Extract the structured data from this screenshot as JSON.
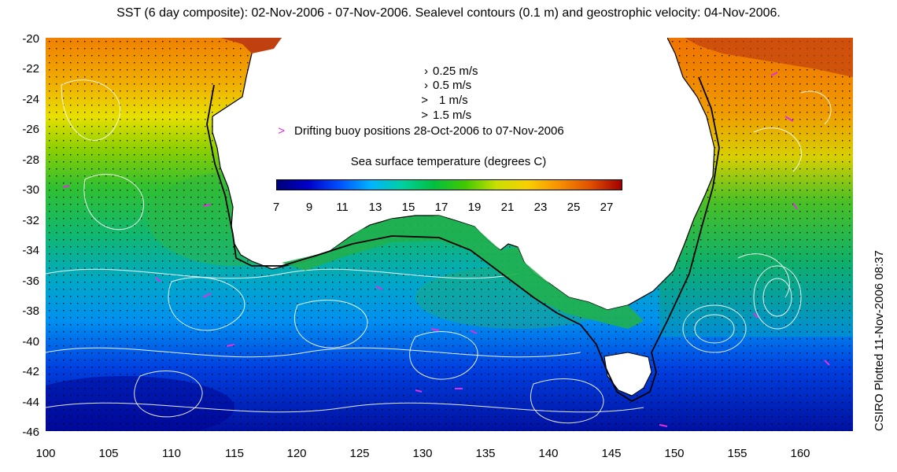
{
  "title": "SST (6 day composite): 02-Nov-2006 - 07-Nov-2006. Sealevel contours (0.1 m) and geostrophic velocity: 04-Nov-2006.",
  "credit": "CSIRO Plotted 11-Nov-2006 08:37",
  "y_axis": {
    "ticks": [
      "-20",
      "-22",
      "-24",
      "-26",
      "-28",
      "-30",
      "-32",
      "-34",
      "-36",
      "-38",
      "-40",
      "-42",
      "-44",
      "-46"
    ]
  },
  "x_axis": {
    "ticks": [
      "100",
      "105",
      "110",
      "115",
      "120",
      "125",
      "130",
      "135",
      "140",
      "145",
      "150",
      "155",
      "160"
    ]
  },
  "legend": {
    "vectors": [
      {
        "mark": "›",
        "label": "0.25 m/s"
      },
      {
        "mark": "›",
        "label": "0.5 m/s"
      },
      {
        "mark": ">",
        "label": "1 m/s"
      },
      {
        "mark": ">",
        "label": "1.5 m/s"
      }
    ],
    "buoy_mark": ">",
    "buoy_label": "Drifting buoy positions 28-Oct-2006 to 07-Nov-2006",
    "buoy_color": "#e02ee0"
  },
  "colorbar": {
    "title": "Sea surface temperature (degrees C)",
    "ticks": [
      "7",
      "9",
      "11",
      "13",
      "15",
      "17",
      "19",
      "21",
      "23",
      "25",
      "27"
    ],
    "stops": [
      "#00007a",
      "#0000c8",
      "#0050ff",
      "#00b4ff",
      "#00d0a0",
      "#00c040",
      "#40c800",
      "#c8e000",
      "#f8d000",
      "#f89000",
      "#e05000",
      "#a00000"
    ]
  },
  "colors": {
    "land": "#ffffff",
    "coast": "#000000",
    "contours": "#ffffff",
    "vectors": "#000000"
  }
}
